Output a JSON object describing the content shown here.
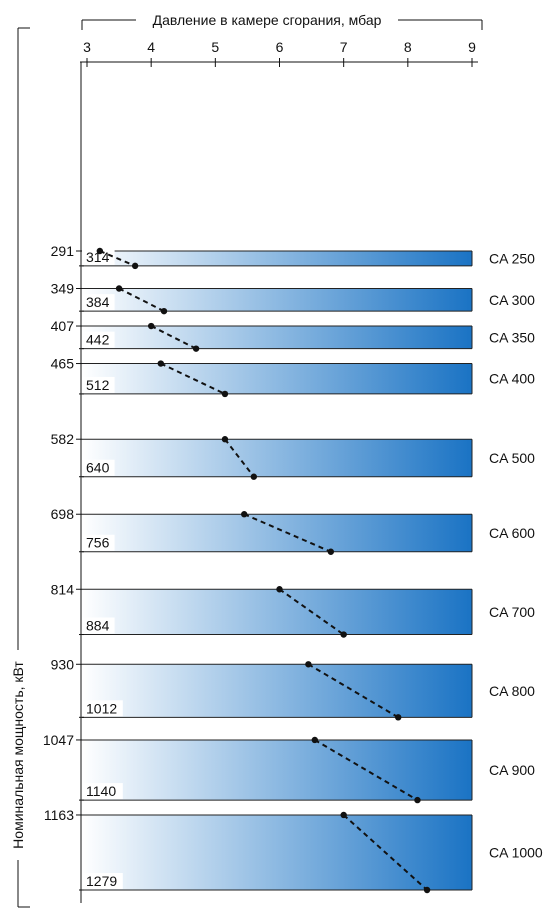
{
  "chart_data": {
    "type": "range-bar",
    "xlabel": "Давление в камере сгорания, мбар",
    "ylabel": "Номинальная мощность, кВт",
    "xlim": [
      3,
      9
    ],
    "x_ticks": [
      "3",
      "4",
      "5",
      "6",
      "7",
      "8",
      "9"
    ],
    "y_axis": "power range, increasing downward",
    "gradient_colors": [
      "#ffffff",
      "#1a73c4"
    ],
    "series": [
      {
        "name": "CA 250",
        "power_min": 291,
        "power_max": 314,
        "pressure_min": 3.2,
        "pressure_max": 3.75
      },
      {
        "name": "CA 300",
        "power_min": 349,
        "power_max": 384,
        "pressure_min": 3.5,
        "pressure_max": 4.2
      },
      {
        "name": "CA 350",
        "power_min": 407,
        "power_max": 442,
        "pressure_min": 4.0,
        "pressure_max": 4.7
      },
      {
        "name": "CA 400",
        "power_min": 465,
        "power_max": 512,
        "pressure_min": 4.15,
        "pressure_max": 5.15
      },
      {
        "name": "CA 500",
        "power_min": 582,
        "power_max": 640,
        "pressure_min": 5.15,
        "pressure_max": 5.6
      },
      {
        "name": "CA 600",
        "power_min": 698,
        "power_max": 756,
        "pressure_min": 5.45,
        "pressure_max": 6.8
      },
      {
        "name": "CA 700",
        "power_min": 814,
        "power_max": 884,
        "pressure_min": 6.0,
        "pressure_max": 7.0
      },
      {
        "name": "CA 800",
        "power_min": 930,
        "power_max": 1012,
        "pressure_min": 6.45,
        "pressure_max": 7.85
      },
      {
        "name": "CA 900",
        "power_min": 1047,
        "power_max": 1140,
        "pressure_min": 6.55,
        "pressure_max": 8.15
      },
      {
        "name": "CA 1000",
        "power_min": 1163,
        "power_max": 1279,
        "pressure_min": 7.0,
        "pressure_max": 8.3
      }
    ]
  }
}
